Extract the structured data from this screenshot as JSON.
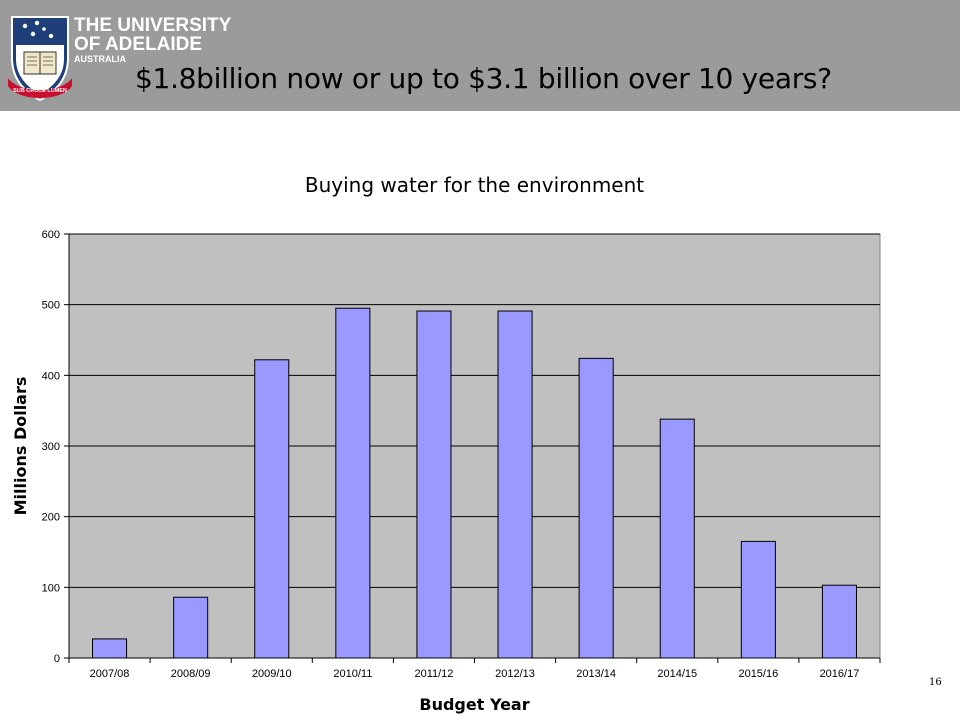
{
  "header": {
    "university_line1": "THE UNIVERSITY",
    "university_line2": "OF ADELAIDE",
    "university_line3": "AUSTRALIA",
    "motto": "SUB CRUCE LUMEN",
    "background_color": "#9b9b9b"
  },
  "slide": {
    "title": "$1.8billion now or up to $3.1 billion over 10 years?",
    "page_number": "16"
  },
  "chart_data": {
    "type": "bar",
    "title": "Buying water for the environment",
    "xlabel": "Budget Year",
    "ylabel": "Millions Dollars",
    "categories": [
      "2007/08",
      "2008/09",
      "2009/10",
      "2010/11",
      "2011/12",
      "2012/13",
      "2013/14",
      "2014/15",
      "2015/16",
      "2016/17"
    ],
    "values": [
      27,
      86,
      422,
      495,
      491,
      491,
      424,
      338,
      165,
      103
    ],
    "ylim": [
      0,
      600
    ],
    "yticks": [
      0,
      100,
      200,
      300,
      400,
      500,
      600
    ],
    "grid": true,
    "legend": false,
    "bar_color": "#9999ff",
    "plot_background": "#c0c0c0"
  }
}
